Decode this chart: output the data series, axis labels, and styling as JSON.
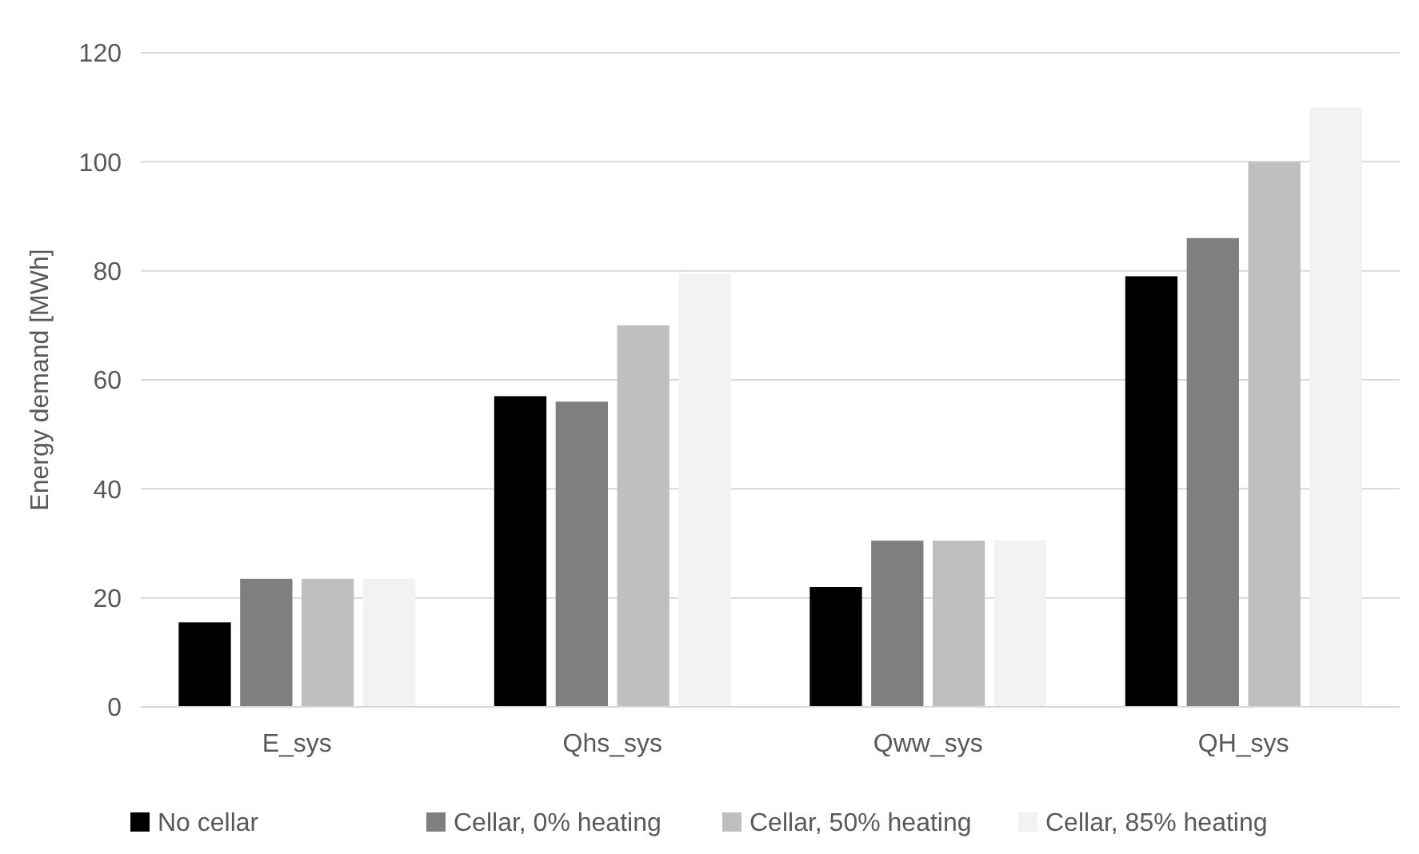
{
  "chart_data": {
    "type": "bar",
    "ylabel": "Energy demand [MWh]",
    "categories": [
      "E_sys",
      "Qhs_sys",
      "Qww_sys",
      "QH_sys"
    ],
    "series": [
      {
        "name": "No cellar",
        "color": "#000000",
        "values": [
          15.5,
          57,
          22,
          79
        ]
      },
      {
        "name": "Cellar, 0% heating",
        "color": "#7f7f7f",
        "values": [
          23.5,
          56,
          30.5,
          86
        ]
      },
      {
        "name": "Cellar, 50% heating",
        "color": "#bfbfbf",
        "values": [
          23.5,
          70,
          30.5,
          100
        ]
      },
      {
        "name": "Cellar, 85% heating",
        "color": "#f2f2f2",
        "values": [
          23.5,
          79.5,
          30.5,
          110
        ]
      }
    ],
    "ylim": [
      0,
      120
    ],
    "yticks": [
      0,
      20,
      40,
      60,
      80,
      100,
      120
    ],
    "grid": "y",
    "legend": "bottom"
  }
}
